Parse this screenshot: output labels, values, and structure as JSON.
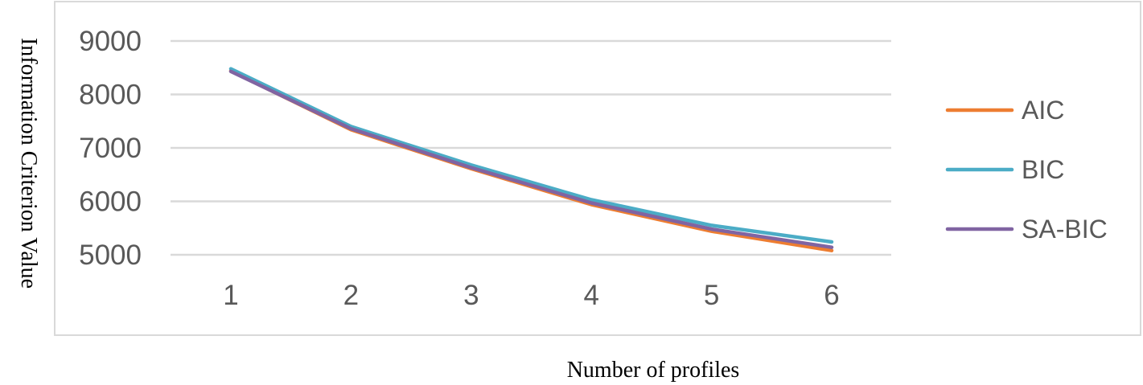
{
  "chart_data": {
    "type": "line",
    "categories": [
      "1",
      "2",
      "3",
      "4",
      "5",
      "6"
    ],
    "series": [
      {
        "name": "AIC",
        "color": "#ED7D31",
        "values": [
          8440,
          7340,
          6610,
          5940,
          5440,
          5080
        ]
      },
      {
        "name": "BIC",
        "color": "#4BACC6",
        "values": [
          8480,
          7400,
          6680,
          6030,
          5550,
          5240
        ]
      },
      {
        "name": "SA-BIC",
        "color": "#8064A2",
        "values": [
          8430,
          7360,
          6630,
          5970,
          5480,
          5140
        ]
      }
    ],
    "xlabel": "Number of profiles",
    "ylabel": "Information Criterion Value",
    "ylim": [
      5000,
      9000
    ],
    "yticks": [
      5000,
      6000,
      7000,
      8000,
      9000
    ],
    "grid": true,
    "legend_position": "right"
  }
}
